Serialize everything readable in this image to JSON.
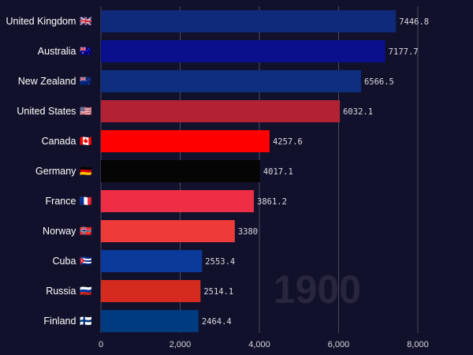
{
  "chart_data": {
    "type": "bar",
    "orientation": "horizontal",
    "year": "1900",
    "categories": [
      "United Kingdom",
      "Australia",
      "New Zealand",
      "United States",
      "Canada",
      "Germany",
      "France",
      "Norway",
      "Cuba",
      "Russia",
      "Finland"
    ],
    "values": [
      7446.8,
      7177.7,
      6566.5,
      6032.1,
      4257.6,
      4017.1,
      3861.2,
      3380,
      2553.4,
      2514.1,
      2464.4
    ],
    "value_labels": [
      "7446.8",
      "7177.7",
      "6566.5",
      "6032.1",
      "4257.6",
      "4017.1",
      "3861.2",
      "3380",
      "2553.4",
      "2514.1",
      "2464.4"
    ],
    "flags": [
      "🇬🇧",
      "🇦🇺",
      "🇳🇿",
      "🇺🇸",
      "🇨🇦",
      "🇩🇪",
      "🇫🇷",
      "🇳🇴",
      "🇨🇺",
      "🇷🇺",
      "🇫🇮"
    ],
    "colors": [
      "#0f2a7a",
      "#0a0f8c",
      "#0e2e80",
      "#b22234",
      "#ff0000",
      "#050505",
      "#ee2e44",
      "#ef3a3a",
      "#0a3a9a",
      "#d52b1e",
      "#003a80"
    ],
    "xticks": [
      0,
      2000,
      4000,
      6000,
      8000
    ],
    "xtick_labels": [
      "0",
      "2,000",
      "4,000",
      "6,000",
      "8,000"
    ],
    "xlim": [
      0,
      8400
    ],
    "grid": true,
    "title": "",
    "xlabel": "",
    "ylabel": ""
  }
}
